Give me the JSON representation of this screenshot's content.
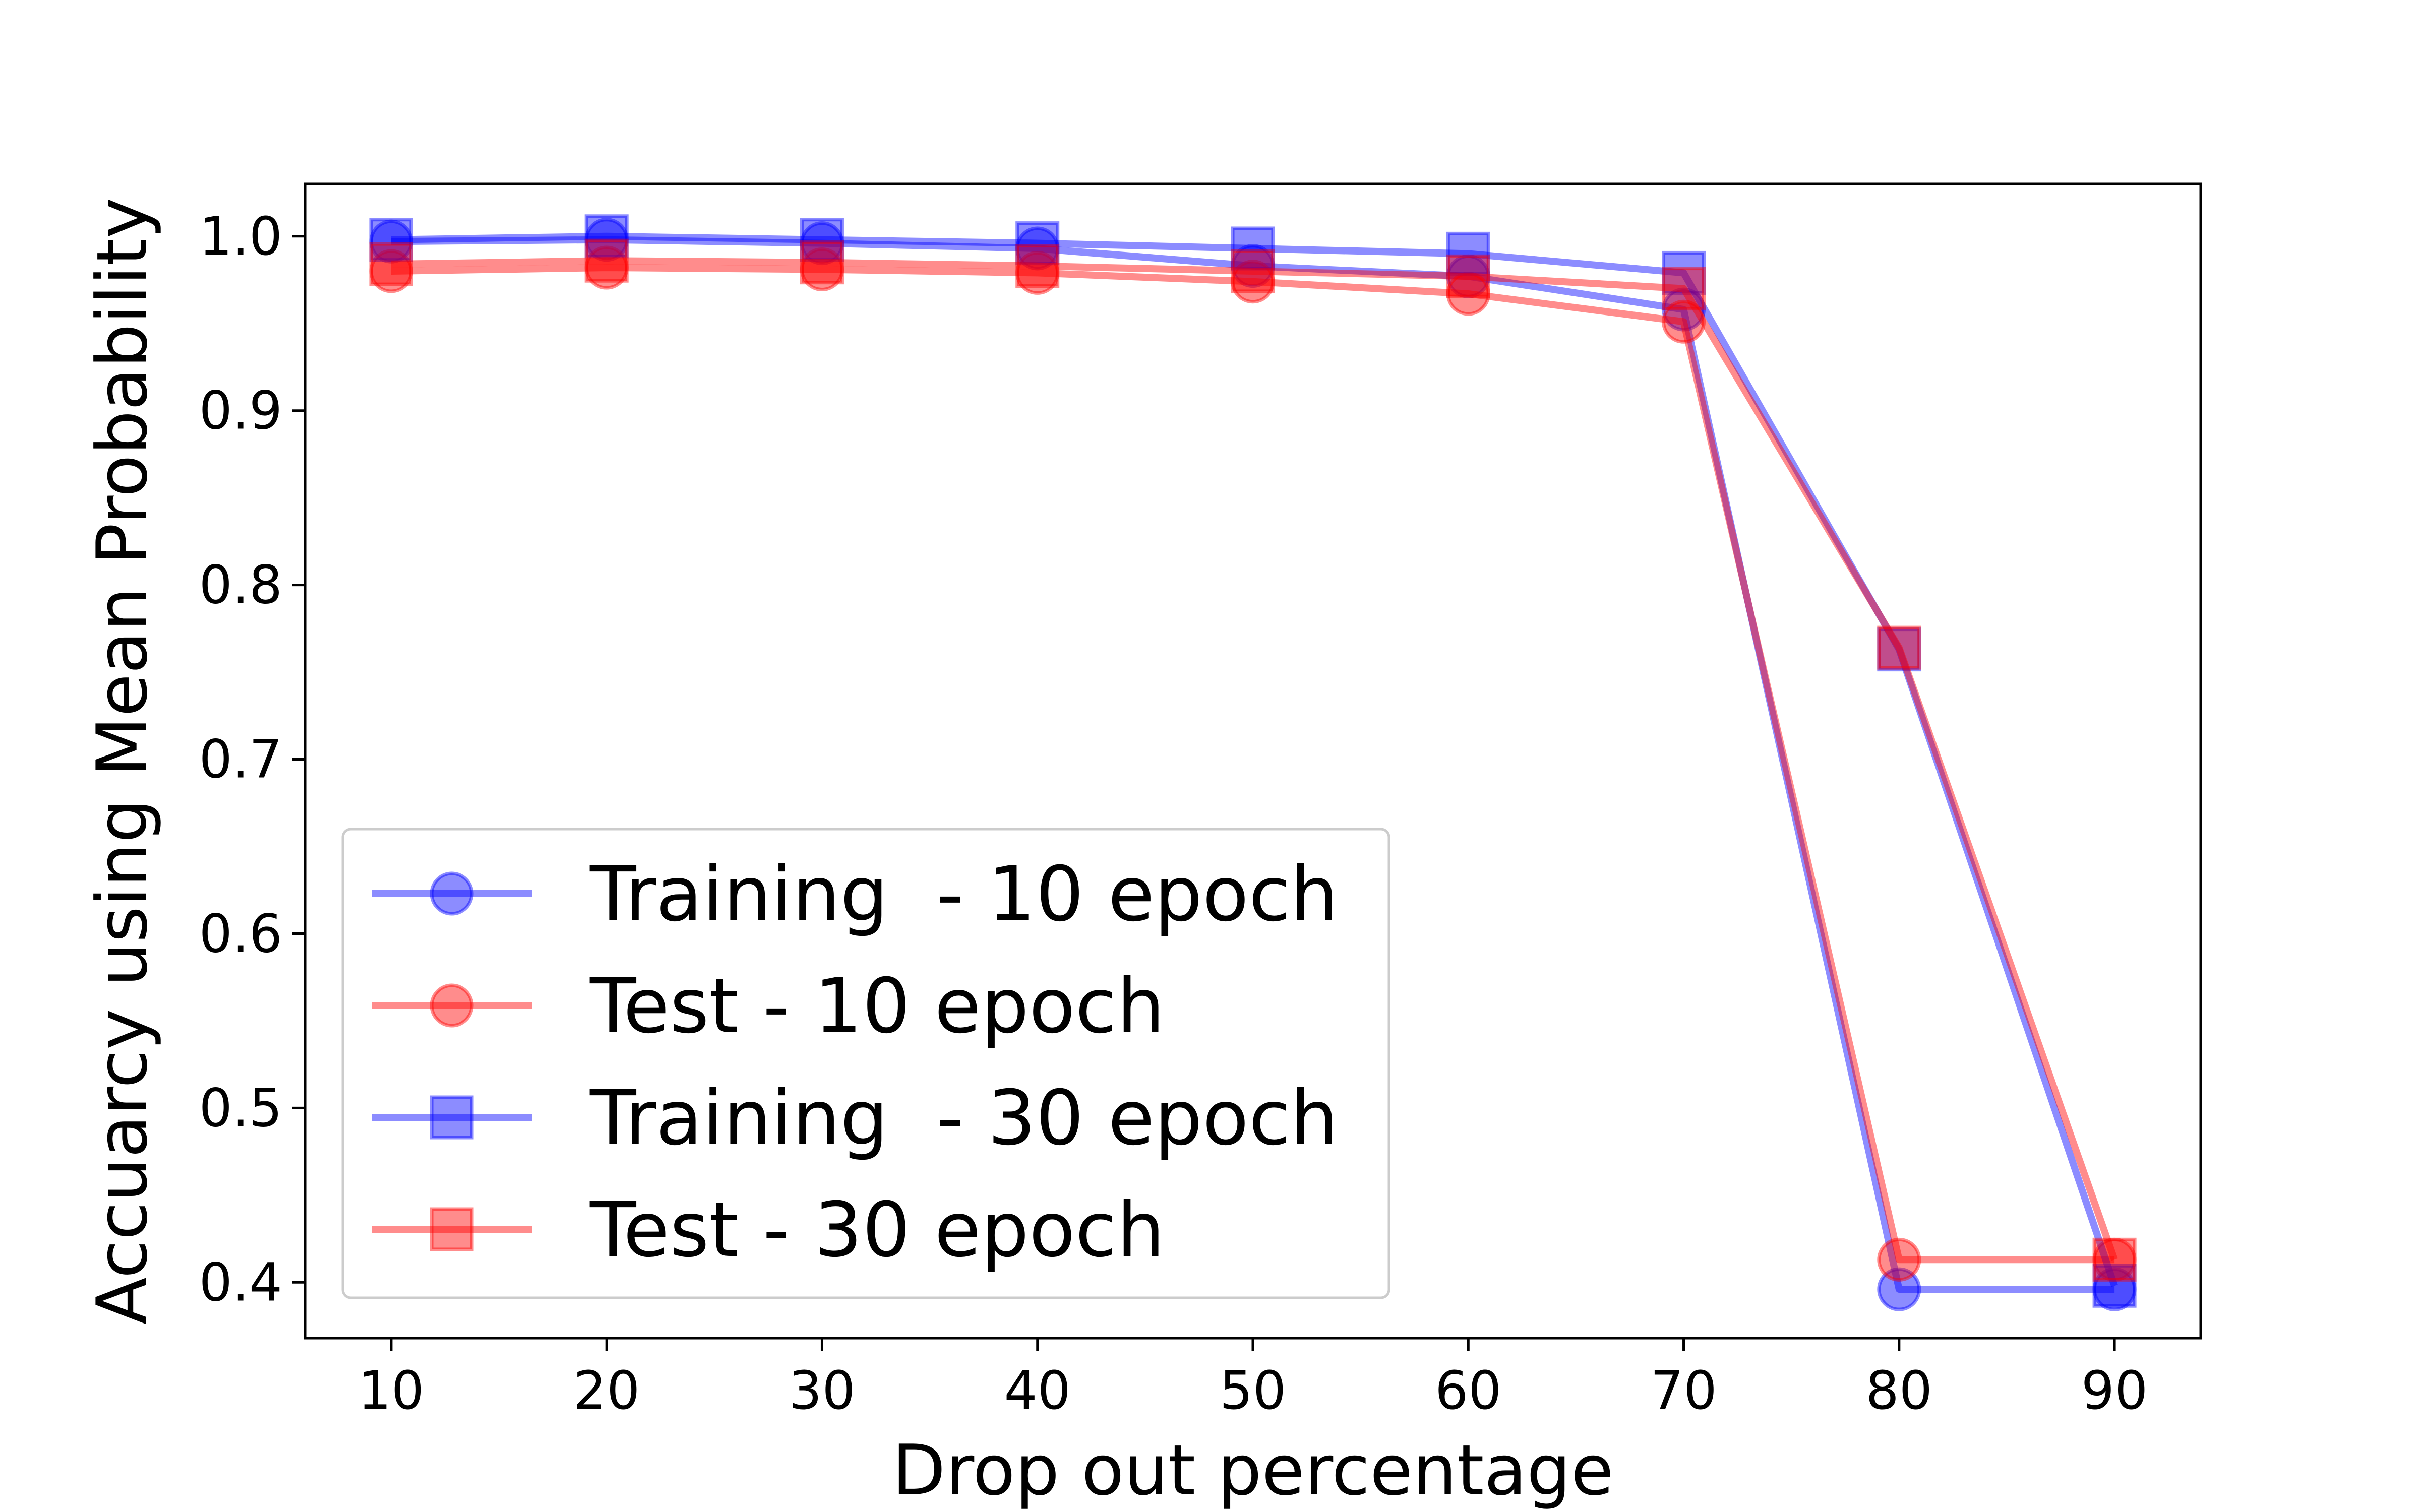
{
  "chart_data": {
    "type": "line",
    "title": "",
    "xlabel": "Drop out percentage",
    "ylabel": "Accuarcy using Mean Probability",
    "x": [
      10,
      20,
      30,
      40,
      50,
      60,
      70,
      80,
      90
    ],
    "xlim": [
      6,
      94
    ],
    "ylim": [
      0.368,
      1.03
    ],
    "xticks": [
      "10",
      "20",
      "30",
      "40",
      "50",
      "60",
      "70",
      "80",
      "90"
    ],
    "yticks": [
      "0.4",
      "0.5",
      "0.6",
      "0.7",
      "0.8",
      "0.9",
      "1.0"
    ],
    "grid": false,
    "legend_position": "lower-left",
    "series": [
      {
        "name": "Training  - 10 epoch",
        "marker": "circle",
        "color": "#0000ff",
        "values": [
          0.997,
          0.998,
          0.996,
          0.993,
          0.983,
          0.977,
          0.958,
          0.396,
          0.396
        ]
      },
      {
        "name": "Test - 10 epoch",
        "marker": "circle",
        "color": "#ff0000",
        "values": [
          0.98,
          0.982,
          0.981,
          0.979,
          0.974,
          0.967,
          0.951,
          0.413,
          0.413
        ]
      },
      {
        "name": "Training  - 30 epoch",
        "marker": "square",
        "color": "#0000ff",
        "values": [
          0.998,
          1.0,
          0.998,
          0.996,
          0.993,
          0.99,
          0.979,
          0.763,
          0.398
        ]
      },
      {
        "name": "Test - 30 epoch",
        "marker": "square",
        "color": "#ff0000",
        "values": [
          0.984,
          0.986,
          0.985,
          0.983,
          0.98,
          0.977,
          0.97,
          0.764,
          0.413
        ]
      }
    ]
  }
}
